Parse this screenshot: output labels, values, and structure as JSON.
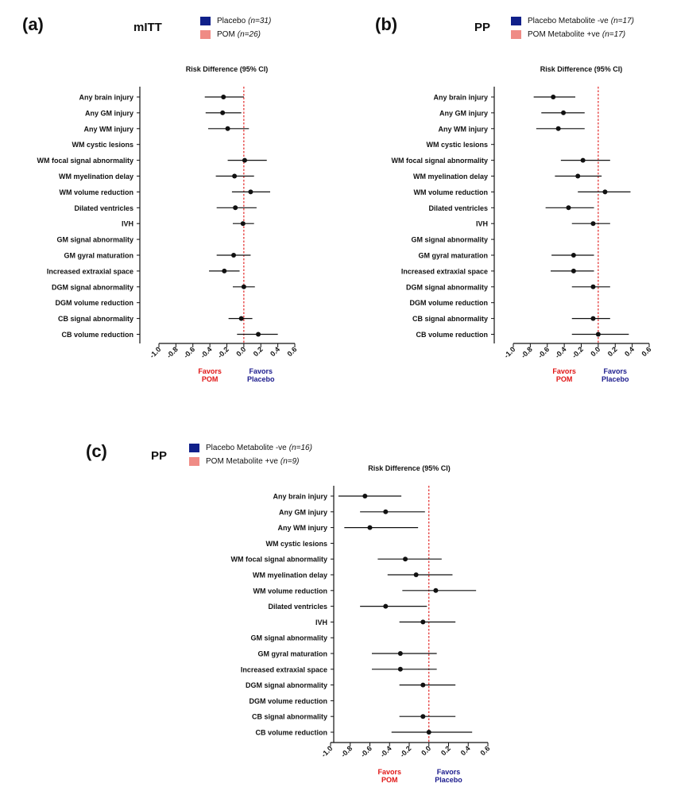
{
  "figure": {
    "colors": {
      "placebo": "#10208a",
      "pom": "#ef8b85",
      "reference_line": "#e01515",
      "favors_pom": "#e01515",
      "favors_placebo": "#1a1a8c",
      "ink": "#111111"
    }
  },
  "panels": [
    {
      "letter": "(a)",
      "analysis": "mITT",
      "legend": [
        {
          "label": "Placebo",
          "n": "(n=31)",
          "color_key": "placebo"
        },
        {
          "label": "POM",
          "n": "(n=26)",
          "color_key": "pom"
        }
      ],
      "favors_left": [
        "Favors",
        "POM"
      ],
      "favors_right": [
        "Favors",
        "Placebo"
      ]
    },
    {
      "letter": "(b)",
      "analysis": "PP",
      "legend": [
        {
          "label": "Placebo Metabolite -ve",
          "n": "(n=17)",
          "color_key": "placebo"
        },
        {
          "label": "POM Metabolite +ve",
          "n": "(n=17)",
          "color_key": "pom"
        }
      ],
      "favors_left": [
        "Favors",
        "POM"
      ],
      "favors_right": [
        "Favors",
        "Placebo"
      ]
    },
    {
      "letter": "(c)",
      "analysis": "PP",
      "legend": [
        {
          "label": "Placebo Metabolite -ve",
          "n": "(n=16)",
          "color_key": "placebo"
        },
        {
          "label": "POM Metabolite +ve",
          "n": "(n=9)",
          "color_key": "pom"
        }
      ],
      "favors_left": [
        "Favors",
        "POM"
      ],
      "favors_right": [
        "Favors",
        "Placebo"
      ]
    }
  ],
  "chart_data": [
    {
      "type": "forest",
      "title": "Risk Difference (95% CI)",
      "xlim": [
        -1.0,
        0.6
      ],
      "xticks": [
        "-1.0",
        "-0.8",
        "-0.6",
        "-0.4",
        "-0.2",
        "0.0",
        "0.2",
        "0.4",
        "0.6"
      ],
      "reference": 0,
      "categories": [
        "Any brain injury",
        "Any GM injury",
        "Any WM injury",
        "WM cystic lesions",
        "WM focal signal abnormality",
        "WM myelination delay",
        "WM volume reduction",
        "Dilated ventricles",
        "IVH",
        "GM signal abnormality",
        "GM gyral maturation",
        "Increased extraxial space",
        "DGM signal abnormality",
        "DGM volume reduction",
        "CB signal abnormality",
        "CB volume reduction"
      ],
      "estimates": [
        {
          "point": -0.24,
          "lower": -0.46,
          "upper": 0.0
        },
        {
          "point": -0.25,
          "lower": -0.45,
          "upper": -0.03
        },
        {
          "point": -0.19,
          "lower": -0.42,
          "upper": 0.06
        },
        null,
        {
          "point": 0.01,
          "lower": -0.19,
          "upper": 0.27
        },
        {
          "point": -0.11,
          "lower": -0.33,
          "upper": 0.12
        },
        {
          "point": 0.08,
          "lower": -0.14,
          "upper": 0.31
        },
        {
          "point": -0.1,
          "lower": -0.32,
          "upper": 0.15
        },
        {
          "point": -0.01,
          "lower": -0.13,
          "upper": 0.12
        },
        null,
        {
          "point": -0.12,
          "lower": -0.32,
          "upper": 0.08
        },
        {
          "point": -0.23,
          "lower": -0.41,
          "upper": -0.05
        },
        {
          "point": 0.0,
          "lower": -0.13,
          "upper": 0.13
        },
        null,
        {
          "point": -0.03,
          "lower": -0.18,
          "upper": 0.1
        },
        {
          "point": 0.17,
          "lower": -0.08,
          "upper": 0.4
        }
      ]
    },
    {
      "type": "forest",
      "title": "Risk Difference (95% CI)",
      "xlim": [
        -1.0,
        0.6
      ],
      "xticks": [
        "-1.0",
        "-0.8",
        "-0.6",
        "-0.4",
        "-0.2",
        "0.0",
        "0.2",
        "0.4",
        "0.6"
      ],
      "reference": 0,
      "categories": [
        "Any brain injury",
        "Any GM injury",
        "Any WM injury",
        "WM cystic lesions",
        "WM focal signal abnormality",
        "WM myelination delay",
        "WM volume reduction",
        "Dilated ventricles",
        "IVH",
        "GM signal abnormality",
        "GM gyral maturation",
        "Increased extraxial space",
        "DGM signal abnormality",
        "DGM volume reduction",
        "CB signal abnormality",
        "CB volume reduction"
      ],
      "estimates": [
        {
          "point": -0.53,
          "lower": -0.76,
          "upper": -0.27
        },
        {
          "point": -0.41,
          "lower": -0.67,
          "upper": -0.16
        },
        {
          "point": -0.47,
          "lower": -0.73,
          "upper": -0.16
        },
        null,
        {
          "point": -0.18,
          "lower": -0.44,
          "upper": 0.14
        },
        {
          "point": -0.24,
          "lower": -0.51,
          "upper": 0.04
        },
        {
          "point": 0.08,
          "lower": -0.24,
          "upper": 0.38
        },
        {
          "point": -0.35,
          "lower": -0.62,
          "upper": -0.05
        },
        {
          "point": -0.06,
          "lower": -0.31,
          "upper": 0.14
        },
        null,
        {
          "point": -0.29,
          "lower": -0.55,
          "upper": -0.05
        },
        {
          "point": -0.29,
          "lower": -0.56,
          "upper": -0.05
        },
        {
          "point": -0.06,
          "lower": -0.31,
          "upper": 0.14
        },
        null,
        {
          "point": -0.06,
          "lower": -0.31,
          "upper": 0.14
        },
        {
          "point": 0.0,
          "lower": -0.31,
          "upper": 0.36
        }
      ]
    },
    {
      "type": "forest",
      "title": "Risk Difference (95% CI)",
      "xlim": [
        -1.0,
        0.6
      ],
      "xticks": [
        "-1.0",
        "-0.8",
        "-0.6",
        "-0.4",
        "-0.2",
        "0.0",
        "0.2",
        "0.4",
        "0.6"
      ],
      "reference": 0,
      "categories": [
        "Any brain injury",
        "Any GM injury",
        "Any WM injury",
        "WM cystic lesions",
        "WM focal signal abnormality",
        "WM myelination delay",
        "WM volume reduction",
        "Dilated ventricles",
        "IVH",
        "GM signal abnormality",
        "GM gyral maturation",
        "Increased extraxial space",
        "DGM signal abnormality",
        "DGM volume reduction",
        "CB signal abnormality",
        "CB volume reduction"
      ],
      "estimates": [
        {
          "point": -0.65,
          "lower": -0.92,
          "upper": -0.28
        },
        {
          "point": -0.44,
          "lower": -0.7,
          "upper": -0.04
        },
        {
          "point": -0.6,
          "lower": -0.86,
          "upper": -0.11
        },
        null,
        {
          "point": -0.24,
          "lower": -0.52,
          "upper": 0.13
        },
        {
          "point": -0.13,
          "lower": -0.42,
          "upper": 0.24
        },
        {
          "point": 0.07,
          "lower": -0.27,
          "upper": 0.48
        },
        {
          "point": -0.44,
          "lower": -0.7,
          "upper": -0.02
        },
        {
          "point": -0.06,
          "lower": -0.3,
          "upper": 0.27
        },
        null,
        {
          "point": -0.29,
          "lower": -0.58,
          "upper": 0.08
        },
        {
          "point": -0.29,
          "lower": -0.58,
          "upper": 0.08
        },
        {
          "point": -0.06,
          "lower": -0.3,
          "upper": 0.27
        },
        null,
        {
          "point": -0.06,
          "lower": -0.3,
          "upper": 0.27
        },
        {
          "point": 0.0,
          "lower": -0.38,
          "upper": 0.44
        }
      ]
    }
  ]
}
